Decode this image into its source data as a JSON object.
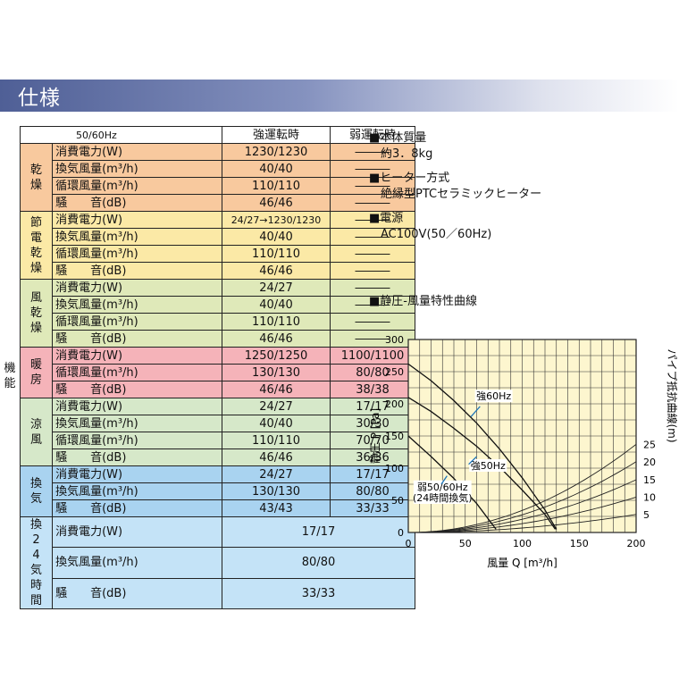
{
  "title": "仕様",
  "table": {
    "headers": [
      "50/60Hz",
      "強運転時",
      "弱運転時"
    ],
    "outer_label": "機能",
    "groups": [
      {
        "label": "乾燥",
        "color": "#f8c99e",
        "rows": [
          {
            "name": "消費電力(W)",
            "strong": "1230/1230",
            "weak": "―――"
          },
          {
            "name": "換気風量(m³/h)",
            "strong": "40/40",
            "weak": "―――"
          },
          {
            "name": "循環風量(m³/h)",
            "strong": "110/110",
            "weak": "―――"
          },
          {
            "name": "騒　　音(dB)",
            "strong": "46/46",
            "weak": "―――"
          }
        ]
      },
      {
        "label": "節電乾燥",
        "color": "#fbe9a6",
        "rows": [
          {
            "name": "消費電力(W)",
            "strong": "24/27→1230/1230",
            "weak": "―――"
          },
          {
            "name": "換気風量(m³/h)",
            "strong": "40/40",
            "weak": "―――"
          },
          {
            "name": "循環風量(m³/h)",
            "strong": "110/110",
            "weak": "―――"
          },
          {
            "name": "騒　　音(dB)",
            "strong": "46/46",
            "weak": "―――"
          }
        ]
      },
      {
        "label": "風乾燥",
        "color": "#dfe9b9",
        "rows": [
          {
            "name": "消費電力(W)",
            "strong": "24/27",
            "weak": "―――"
          },
          {
            "name": "換気風量(m³/h)",
            "strong": "40/40",
            "weak": "―――"
          },
          {
            "name": "循環風量(m³/h)",
            "strong": "110/110",
            "weak": "―――"
          },
          {
            "name": "騒　　音(dB)",
            "strong": "46/46",
            "weak": "―――"
          }
        ]
      },
      {
        "label": "暖房",
        "color": "#f5b3b9",
        "rows": [
          {
            "name": "消費電力(W)",
            "strong": "1250/1250",
            "weak": "1100/1100"
          },
          {
            "name": "循環風量(m³/h)",
            "strong": "130/130",
            "weak": "80/80"
          },
          {
            "name": "騒　　音(dB)",
            "strong": "46/46",
            "weak": "38/38"
          }
        ]
      },
      {
        "label": "涼風",
        "color": "#d6e8c9",
        "rows": [
          {
            "name": "消費電力(W)",
            "strong": "24/27",
            "weak": "17/17"
          },
          {
            "name": "換気風量(m³/h)",
            "strong": "40/40",
            "weak": "30/30"
          },
          {
            "name": "循環風量(m³/h)",
            "strong": "110/110",
            "weak": "70/70"
          },
          {
            "name": "騒　　音(dB)",
            "strong": "46/46",
            "weak": "36/36"
          }
        ]
      },
      {
        "label": "換気",
        "color": "#a9d3f0",
        "rows": [
          {
            "name": "消費電力(W)",
            "strong": "24/27",
            "weak": "17/17"
          },
          {
            "name": "換気風量(m³/h)",
            "strong": "130/130",
            "weak": "80/80"
          },
          {
            "name": "騒　　音(dB)",
            "strong": "43/43",
            "weak": "33/33"
          }
        ]
      },
      {
        "label": "換24気時間",
        "color": "#c4e3f7",
        "rows": [
          {
            "name": "消費電力(W)",
            "merged": "17/17"
          },
          {
            "name": "換気風量(m³/h)",
            "merged": "80/80"
          },
          {
            "name": "騒　　音(dB)",
            "merged": "33/33"
          }
        ]
      }
    ]
  },
  "info": [
    {
      "heading": "■本体質量",
      "value": "約3．8kg"
    },
    {
      "heading": "■ヒーター方式",
      "value": "絶縁型PTCセラミックヒーター"
    },
    {
      "heading": "■電源",
      "value": "AC100V(50／60Hz)"
    }
  ],
  "chart_title": "■静圧-風量特性曲線",
  "chart_data": {
    "type": "line",
    "xlabel": "風量 Q [m³/h]",
    "ylabel": "静圧 P [Pa]",
    "y2label": "パイプ抵抗曲線(m)",
    "xlim": [
      0,
      200
    ],
    "ylim": [
      0,
      300
    ],
    "x_ticks": [
      0,
      50,
      100,
      150,
      200
    ],
    "y_ticks": [
      0,
      50,
      100,
      150,
      200,
      250,
      300
    ],
    "grid": true,
    "series": [
      {
        "name": "強60Hz",
        "x": [
          0,
          20,
          40,
          60,
          80,
          100,
          120,
          130
        ],
        "y": [
          262,
          236,
          205,
          170,
          130,
          85,
          35,
          5
        ]
      },
      {
        "name": "強50Hz",
        "x": [
          0,
          20,
          40,
          60,
          80,
          100,
          120,
          129
        ],
        "y": [
          210,
          188,
          162,
          134,
          102,
          66,
          28,
          5
        ]
      },
      {
        "name": "弱50/60Hz（24時間換気）",
        "x": [
          0,
          20,
          40,
          60,
          77
        ],
        "y": [
          150,
          118,
          84,
          45,
          5
        ]
      }
    ],
    "pipe_curves": [
      {
        "label": "5",
        "y_at_200": 28
      },
      {
        "label": "10",
        "y_at_200": 55
      },
      {
        "label": "15",
        "y_at_200": 82
      },
      {
        "label": "20",
        "y_at_200": 110
      },
      {
        "label": "25",
        "y_at_200": 137
      }
    ],
    "annotations": [
      {
        "text": "強60Hz",
        "x": 75,
        "y": 208
      },
      {
        "text": "強50Hz",
        "x": 70,
        "y": 100
      },
      {
        "text": "弱50/60Hz",
        "x": 30,
        "y": 67
      },
      {
        "text": "(24時間換気)",
        "x": 30,
        "y": 50
      }
    ]
  }
}
